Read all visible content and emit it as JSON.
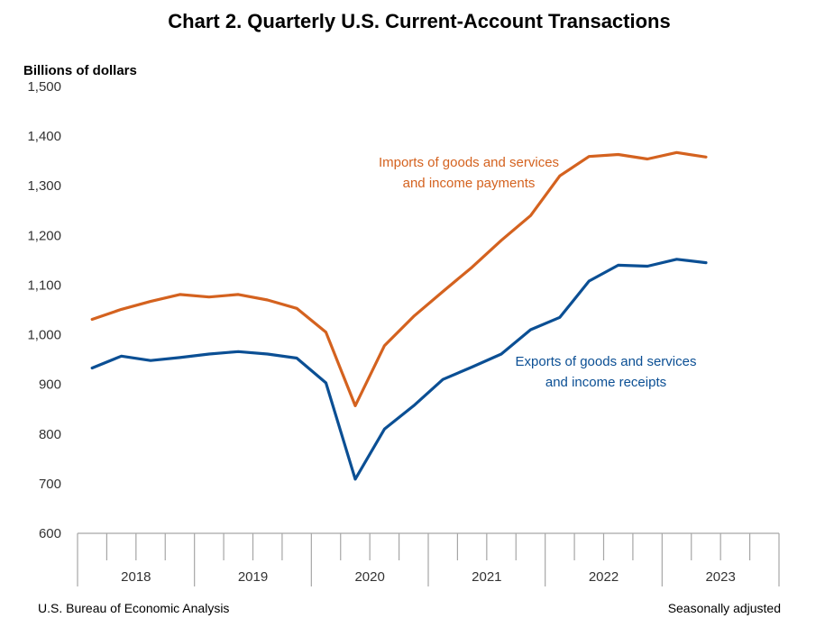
{
  "chart_data": {
    "type": "line",
    "title": "Chart 2. Quarterly U.S. Current-Account Transactions",
    "ylabel": "Billions of dollars",
    "xlabel": "",
    "ylim": [
      600,
      1500
    ],
    "yticks": [
      600,
      700,
      800,
      900,
      1000,
      1100,
      1200,
      1300,
      1400,
      1500
    ],
    "ytick_labels": [
      "600",
      "700",
      "800",
      "900",
      "1,000",
      "1,100",
      "1,200",
      "1,300",
      "1,400",
      "1,500"
    ],
    "years": [
      "2018",
      "2019",
      "2020",
      "2021",
      "2022",
      "2023"
    ],
    "quarters_per_year": 4,
    "grid": false,
    "series": [
      {
        "label_lines": [
          "Imports of goods and services",
          "and income payments"
        ],
        "color": "#d4621f",
        "values": [
          1031,
          1051,
          1067,
          1081,
          1076,
          1081,
          1070,
          1053,
          1005,
          857,
          978,
          1037,
          1087,
          1136,
          1190,
          1240,
          1320,
          1359,
          1363,
          1354,
          1367,
          1358
        ]
      },
      {
        "label_lines": [
          "Exports of goods and services",
          "and income receipts"
        ],
        "color": "#0b4f94",
        "values": [
          933,
          957,
          948,
          954,
          961,
          966,
          961,
          953,
          903,
          709,
          810,
          857,
          910,
          935,
          961,
          1010,
          1035,
          1108,
          1140,
          1138,
          1152,
          1145
        ]
      }
    ],
    "footer_left": "U.S. Bureau of Economic Analysis",
    "footer_right": "Seasonally adjusted"
  }
}
